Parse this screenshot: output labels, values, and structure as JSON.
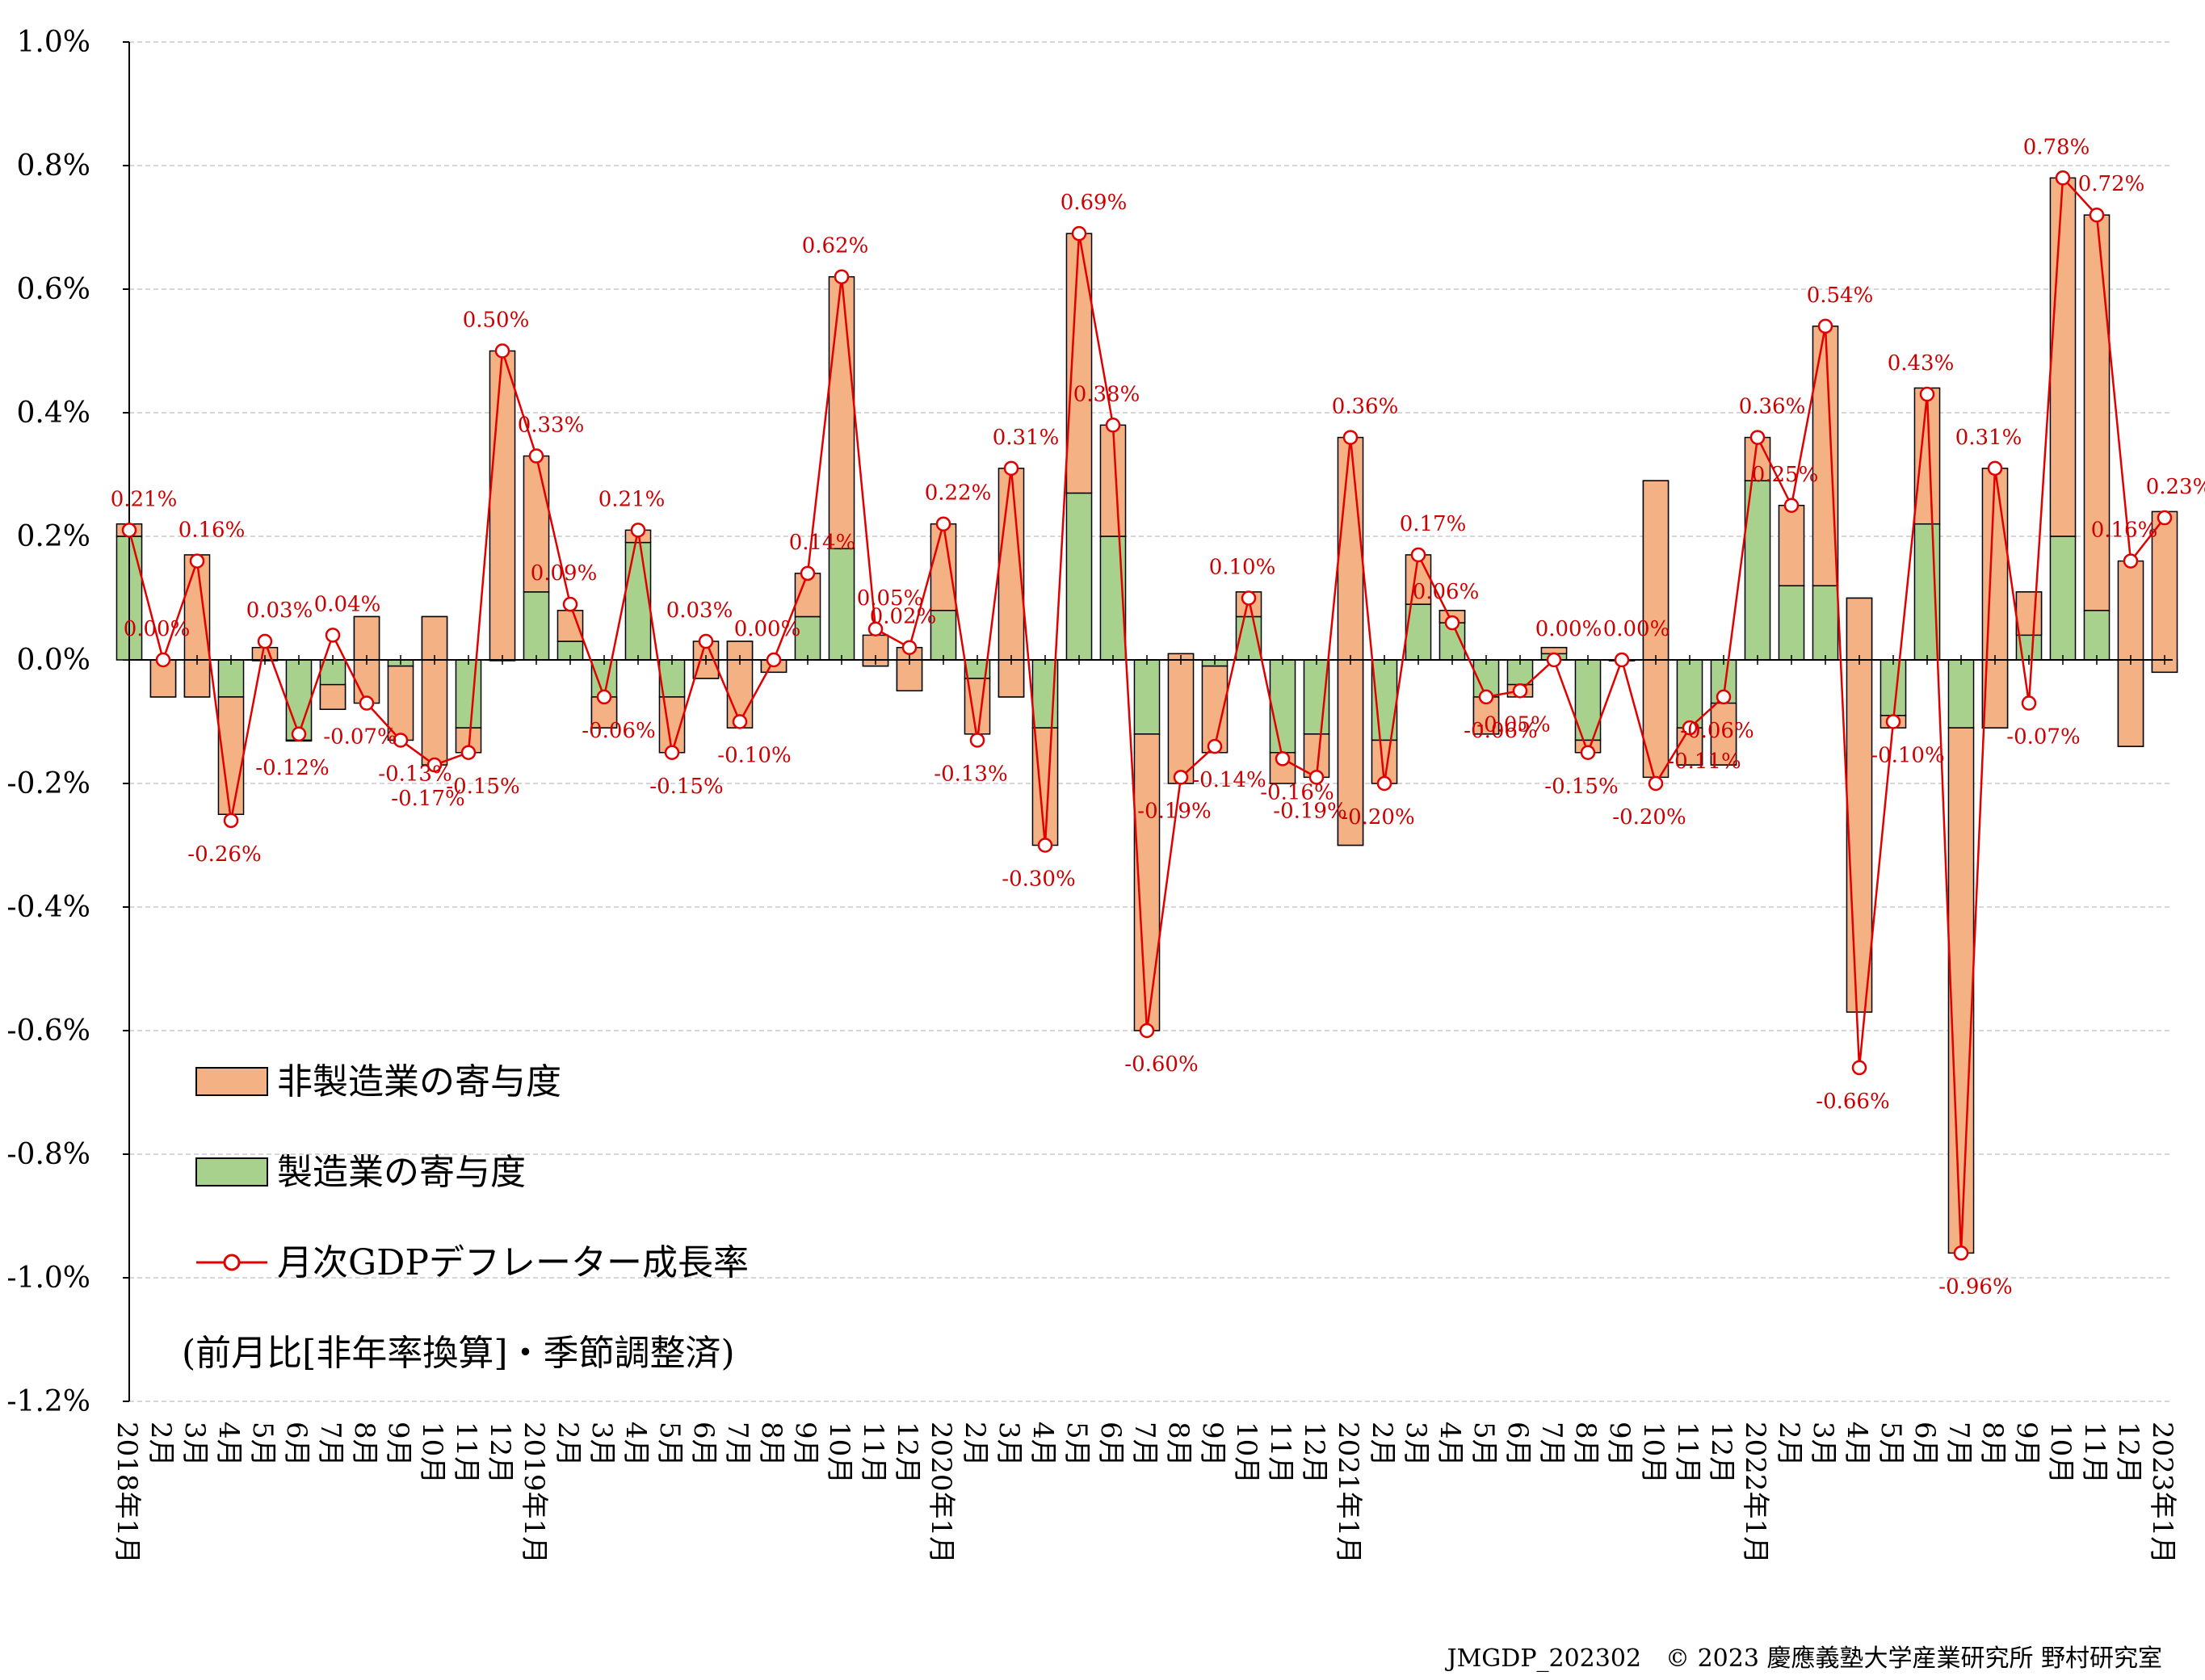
{
  "chart_data": {
    "type": "bar",
    "stacked": true,
    "note": "(前月比[非年率換算]・季節調整済)",
    "credit": "JMGDP_202302　© 2023 慶應義塾大学産業研究所 野村研究室",
    "ylim": [
      -1.2,
      1.0
    ],
    "y_ticks": [
      "1.0%",
      "0.8%",
      "0.6%",
      "0.4%",
      "0.2%",
      "0.0%",
      "-0.2%",
      "-0.4%",
      "-0.6%",
      "-0.8%",
      "-1.0%",
      "-1.2%"
    ],
    "grid": true,
    "legend_position": "lower-left",
    "categories": [
      "2018年1月",
      "2月",
      "3月",
      "4月",
      "5月",
      "6月",
      "7月",
      "8月",
      "9月",
      "10月",
      "11月",
      "12月",
      "2019年1月",
      "2月",
      "3月",
      "4月",
      "5月",
      "6月",
      "7月",
      "8月",
      "9月",
      "10月",
      "11月",
      "12月",
      "2020年1月",
      "2月",
      "3月",
      "4月",
      "5月",
      "6月",
      "7月",
      "8月",
      "9月",
      "10月",
      "11月",
      "12月",
      "2021年1月",
      "2月",
      "3月",
      "4月",
      "5月",
      "6月",
      "7月",
      "8月",
      "9月",
      "10月",
      "11月",
      "12月",
      "2022年1月",
      "2月",
      "3月",
      "4月",
      "5月",
      "6月",
      "7月",
      "8月",
      "9月",
      "10月",
      "11月",
      "12月",
      "2023年1月"
    ],
    "series": [
      {
        "name": "非製造業の寄与度",
        "kind": "bar",
        "color": "#f4b183",
        "values": [
          0.02,
          0.06,
          0.23,
          -0.19,
          0.02,
          0.0,
          0.04,
          -0.14,
          -0.12,
          -0.24,
          -0.04,
          0.5,
          0.22,
          0.05,
          0.05,
          0.02,
          -0.09,
          0.06,
          -0.14,
          0.02,
          0.07,
          0.44,
          0.05,
          0.07,
          0.14,
          -0.09,
          0.37,
          -0.19,
          0.42,
          0.18,
          -0.48,
          -0.21,
          -0.14,
          0.04,
          -0.05,
          -0.07,
          0.66,
          -0.07,
          0.08,
          -0.02,
          0.06,
          -0.02,
          -0.01,
          -0.02,
          0.0,
          -0.48,
          0.06,
          0.1,
          0.07,
          0.13,
          0.42,
          -0.67,
          -0.02,
          0.22,
          -0.85,
          0.42,
          -0.07,
          0.58,
          0.64,
          0.3,
          0.26
        ],
        "bottoms_note": "stacked on manufacturing contribution"
      },
      {
        "name": "製造業の寄与度",
        "kind": "bar",
        "color": "#a9d18e",
        "values": [
          0.2,
          -0.06,
          -0.06,
          -0.06,
          0.0,
          -0.13,
          -0.08,
          0.07,
          -0.01,
          0.07,
          -0.11,
          0.0,
          0.11,
          0.03,
          -0.11,
          0.19,
          -0.06,
          -0.03,
          0.03,
          -0.02,
          0.07,
          0.18,
          -0.01,
          -0.05,
          0.08,
          -0.03,
          -0.06,
          -0.11,
          0.27,
          0.2,
          -0.12,
          0.01,
          -0.01,
          0.07,
          -0.15,
          -0.12,
          -0.3,
          -0.13,
          0.09,
          0.08,
          -0.12,
          -0.04,
          0.02,
          -0.13,
          0.0,
          0.29,
          -0.17,
          -0.17,
          0.29,
          0.12,
          0.12,
          0.1,
          -0.09,
          0.22,
          -0.11,
          -0.11,
          0.11,
          0.2,
          0.08,
          -0.14,
          -0.02
        ]
      },
      {
        "name": "月次GDPデフレーター成長率",
        "kind": "line",
        "color": "#e00000",
        "values": [
          0.21,
          0.0,
          0.16,
          -0.26,
          0.03,
          -0.12,
          0.04,
          -0.07,
          -0.13,
          -0.17,
          -0.15,
          0.5,
          0.33,
          0.09,
          -0.06,
          0.21,
          -0.15,
          0.03,
          -0.1,
          0.0,
          0.14,
          0.62,
          0.05,
          0.02,
          0.22,
          -0.13,
          0.31,
          -0.3,
          0.69,
          0.38,
          -0.6,
          -0.19,
          -0.14,
          0.1,
          -0.16,
          -0.19,
          0.36,
          -0.2,
          0.17,
          0.06,
          -0.06,
          -0.05,
          0.0,
          -0.15,
          0.0,
          -0.2,
          -0.11,
          -0.06,
          0.36,
          0.25,
          0.54,
          -0.66,
          -0.1,
          0.43,
          -0.96,
          0.31,
          -0.07,
          0.78,
          0.72,
          0.16,
          0.23
        ],
        "labels": [
          "0.21%",
          "0.00%",
          "0.16%",
          "-0.26%",
          "0.03%",
          "-0.12%",
          "0.04%",
          "-0.07%",
          "-0.13%",
          "-0.17%",
          "-0.15%",
          "0.50%",
          "0.33%",
          "0.09%",
          "-0.06%",
          "0.21%",
          "-0.15%",
          "0.03%",
          "-0.10%",
          "0.00%",
          "0.14%",
          "0.62%",
          "0.05%",
          "0.02%",
          "0.22%",
          "-0.13%",
          "0.31%",
          "-0.30%",
          "0.69%",
          "0.38%",
          "-0.60%",
          "-0.19%",
          "-0.14%",
          "0.10%",
          "-0.16%",
          "-0.19%",
          "0.36%",
          "-0.20%",
          "0.17%",
          "0.06%",
          "-0.06%",
          "-0.05%",
          "0.00%",
          "-0.15%",
          "0.00%",
          "-0.20%",
          "-0.11%",
          "-0.06%",
          "0.36%",
          "0.25%",
          "0.54%",
          "-0.66%",
          "-0.10%",
          "0.43%",
          "-0.96%",
          "0.31%",
          "-0.07%",
          "0.78%",
          "0.72%",
          "0.16%",
          "0.23%"
        ]
      }
    ]
  }
}
